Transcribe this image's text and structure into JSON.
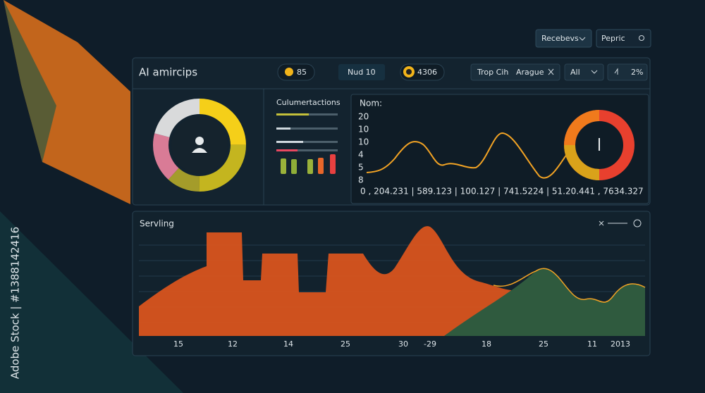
{
  "top_bar": {
    "dropdown": "Recebevs",
    "search": "Pepric"
  },
  "panel": {
    "title": "AI amircips",
    "badges": [
      "85",
      "Nud 10",
      "4306"
    ],
    "filter": {
      "label": "Trop Cih",
      "value": "Arague"
    },
    "select": "All",
    "percent": "2%",
    "list": {
      "title": "Culumertactions"
    },
    "line_chart": {
      "title": "Nom:",
      "y_labels": [
        "20",
        "10",
        "10",
        "4",
        "5",
        "8"
      ],
      "footer": "0 , 204.231  |  589.123  |  100.127  |  741.5224  |  51.20.441 ,  7634.327"
    }
  },
  "area_chart": {
    "title": "Servling",
    "x_labels": [
      "15",
      "12",
      "14",
      "25",
      "30",
      "-29",
      "18",
      "25",
      "11",
      "2013"
    ]
  },
  "watermark": "Adobe Stock | #1388142416"
}
